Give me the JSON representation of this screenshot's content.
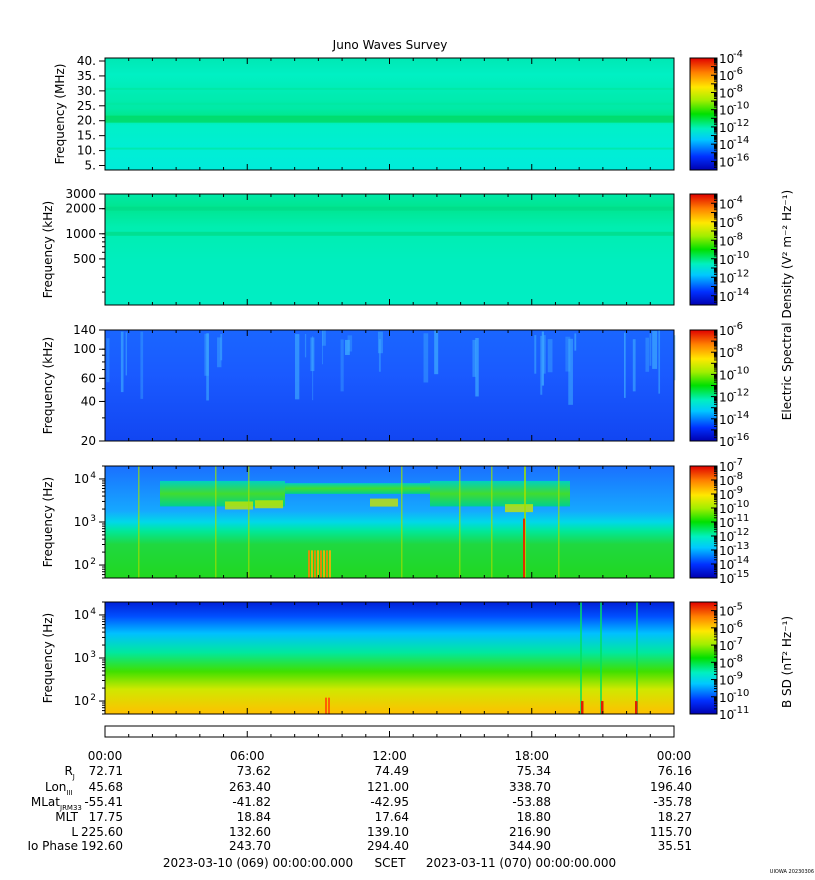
{
  "title": "Juno Waves Survey",
  "chart_data": [
    {
      "type": "heatmap",
      "ylabel": "Frequency (MHz)",
      "yscale": "linear",
      "ylim": [
        3.5,
        41
      ],
      "yticks": [
        "5.",
        "10.",
        "15.",
        "20.",
        "25.",
        "30.",
        "35.",
        "40."
      ],
      "ytick_values": [
        5,
        10,
        15,
        20,
        25,
        30,
        35,
        40
      ],
      "colorbar": {
        "scale": "log",
        "min_exp": -17,
        "max_exp": -4,
        "ticks": [
          "-16",
          "-14",
          "-12",
          "-10",
          "-8",
          "-6",
          "-4"
        ],
        "tick_values": [
          -16,
          -14,
          -12,
          -10,
          -8,
          -6,
          -4
        ]
      }
    },
    {
      "type": "heatmap",
      "ylabel": "Frequency (kHz)",
      "yscale": "log",
      "ylim": [
        140,
        3000
      ],
      "yticks": [
        "500",
        "1000",
        "2000",
        "3000"
      ],
      "ytick_values": [
        500,
        1000,
        2000,
        3000
      ],
      "colorbar": {
        "scale": "log",
        "min_exp": -15,
        "max_exp": -3,
        "ticks": [
          "-14",
          "-12",
          "-10",
          "-8",
          "-6",
          "-4"
        ],
        "tick_values": [
          -14,
          -12,
          -10,
          -8,
          -6,
          -4
        ]
      }
    },
    {
      "type": "heatmap",
      "ylabel": "Frequency (kHz)",
      "yscale": "log",
      "ylim": [
        20,
        140
      ],
      "yticks": [
        "20",
        "40",
        "60",
        "100",
        "140"
      ],
      "ytick_values": [
        20,
        40,
        60,
        100,
        140
      ],
      "colorbar": {
        "scale": "log",
        "min_exp": -16,
        "max_exp": -6,
        "ticks": [
          "-16",
          "-14",
          "-12",
          "-10",
          "-8",
          "-6"
        ],
        "tick_values": [
          -16,
          -14,
          -12,
          -10,
          -8,
          -6
        ]
      }
    },
    {
      "type": "heatmap",
      "ylabel": "Frequency (Hz)",
      "yscale": "log",
      "ylim": [
        50,
        20000
      ],
      "yticks": [
        "10",
        "10",
        "10"
      ],
      "ytick_exps": [
        "2",
        "3",
        "4"
      ],
      "ytick_values": [
        100,
        1000,
        10000
      ],
      "colorbar": {
        "scale": "log",
        "min_exp": -15,
        "max_exp": -7,
        "ticks": [
          "-15",
          "-14",
          "-13",
          "-12",
          "-11",
          "-10",
          "-9",
          "-8",
          "-7"
        ],
        "tick_values": [
          -15,
          -14,
          -13,
          -12,
          -11,
          -10,
          -9,
          -8,
          -7
        ]
      }
    },
    {
      "type": "heatmap",
      "ylabel": "Frequency (Hz)",
      "yscale": "log",
      "ylim": [
        50,
        20000
      ],
      "yticks": [
        "10",
        "10",
        "10"
      ],
      "ytick_exps": [
        "2",
        "3",
        "4"
      ],
      "ytick_values": [
        100,
        1000,
        10000
      ],
      "colorbar": {
        "scale": "log",
        "min_exp": -11,
        "max_exp": -4.5,
        "ticks": [
          "-11",
          "-10",
          "-9",
          "-8",
          "-7",
          "-6",
          "-5"
        ],
        "tick_values": [
          -11,
          -10,
          -9,
          -8,
          -7,
          -6,
          -5
        ]
      }
    }
  ],
  "colorbar_label_top": "Electric Spectral Density (V² m⁻² Hz⁻¹)",
  "colorbar_label_bottom": "B SD (nT² Hz⁻¹)",
  "time_ticks": [
    "00:00",
    "06:00",
    "12:00",
    "18:00",
    "00:00"
  ],
  "ephemeris": {
    "labels": [
      "R",
      "Lon",
      "MLat",
      "MLT",
      "L",
      "Io Phase"
    ],
    "label_subs": [
      "J",
      "III",
      "JRM33",
      "",
      "",
      ""
    ],
    "rows": [
      [
        "72.71",
        "73.62",
        "74.49",
        "75.34",
        "76.16"
      ],
      [
        "45.68",
        "263.40",
        "121.00",
        "338.70",
        "196.40"
      ],
      [
        "-55.41",
        "-41.82",
        "-42.95",
        "-53.88",
        "-35.78"
      ],
      [
        "17.75",
        "18.84",
        "17.64",
        "18.80",
        "18.27"
      ],
      [
        "225.60",
        "132.60",
        "139.10",
        "216.90",
        "115.70"
      ],
      [
        "192.60",
        "243.70",
        "294.40",
        "344.90",
        "35.51"
      ]
    ]
  },
  "footer": {
    "start": "2023-03-10 (069) 00:00:00.000",
    "scet": "SCET",
    "end": "2023-03-11 (070) 00:00:00.000"
  },
  "corner_note": "UIOWA 20230306"
}
